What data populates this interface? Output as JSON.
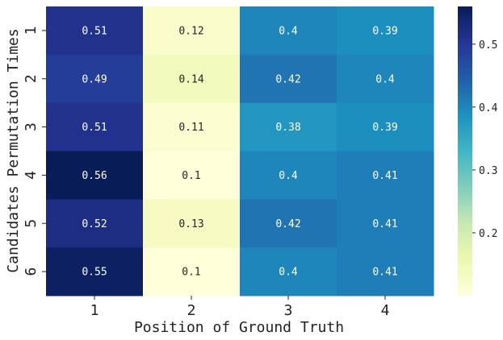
{
  "chart_data": {
    "type": "heatmap",
    "title": "",
    "xlabel": "Position of Ground Truth",
    "ylabel": "Candidates Permutation Times",
    "x_categories": [
      "1",
      "2",
      "3",
      "4"
    ],
    "y_categories": [
      "1",
      "2",
      "3",
      "4",
      "5",
      "6"
    ],
    "values": [
      [
        0.51,
        0.12,
        0.4,
        0.39
      ],
      [
        0.49,
        0.14,
        0.42,
        0.4
      ],
      [
        0.51,
        0.11,
        0.38,
        0.39
      ],
      [
        0.56,
        0.1,
        0.4,
        0.41
      ],
      [
        0.52,
        0.13,
        0.42,
        0.41
      ],
      [
        0.55,
        0.1,
        0.4,
        0.41
      ]
    ],
    "cell_labels": [
      [
        "0.51",
        "0.12",
        "0.4",
        "0.39"
      ],
      [
        "0.49",
        "0.14",
        "0.42",
        "0.4"
      ],
      [
        "0.51",
        "0.11",
        "0.38",
        "0.39"
      ],
      [
        "0.56",
        "0.1",
        "0.4",
        "0.41"
      ],
      [
        "0.52",
        "0.13",
        "0.42",
        "0.41"
      ],
      [
        "0.55",
        "0.1",
        "0.4",
        "0.41"
      ]
    ],
    "colormap": "YlGnBu",
    "color_range": [
      0.1,
      0.56
    ],
    "colorbar_ticks": [
      0.2,
      0.3,
      0.4,
      0.5
    ],
    "colorbar_tick_labels": [
      "0.2",
      "0.3",
      "0.4",
      "0.5"
    ],
    "colorbar": "right",
    "grid": false
  }
}
